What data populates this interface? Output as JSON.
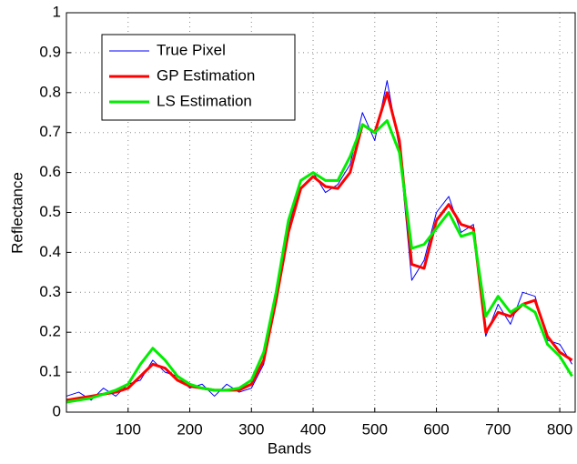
{
  "chart_data": {
    "type": "line",
    "xlabel": "Bands",
    "ylabel": "Reflectance",
    "x": [
      0,
      20,
      40,
      60,
      80,
      100,
      120,
      140,
      160,
      180,
      200,
      220,
      240,
      260,
      280,
      300,
      320,
      340,
      360,
      380,
      400,
      420,
      440,
      460,
      480,
      500,
      520,
      540,
      560,
      580,
      600,
      620,
      640,
      660,
      680,
      700,
      720,
      740,
      760,
      780,
      800,
      820
    ],
    "series": [
      {
        "name": "True Pixel",
        "color": "#0000ff",
        "width": 1,
        "values": [
          0.04,
          0.05,
          0.03,
          0.06,
          0.04,
          0.07,
          0.08,
          0.13,
          0.1,
          0.09,
          0.06,
          0.07,
          0.04,
          0.07,
          0.05,
          0.06,
          0.12,
          0.3,
          0.46,
          0.58,
          0.6,
          0.55,
          0.57,
          0.62,
          0.75,
          0.68,
          0.83,
          0.66,
          0.33,
          0.38,
          0.5,
          0.54,
          0.45,
          0.47,
          0.19,
          0.27,
          0.22,
          0.3,
          0.29,
          0.18,
          0.17,
          0.12
        ]
      },
      {
        "name": "GP Estimation",
        "color": "#ff0000",
        "width": 3,
        "values": [
          0.03,
          0.035,
          0.04,
          0.045,
          0.05,
          0.06,
          0.09,
          0.12,
          0.11,
          0.08,
          0.065,
          0.06,
          0.055,
          0.055,
          0.055,
          0.07,
          0.13,
          0.28,
          0.45,
          0.56,
          0.59,
          0.565,
          0.56,
          0.6,
          0.72,
          0.7,
          0.8,
          0.68,
          0.37,
          0.36,
          0.48,
          0.52,
          0.47,
          0.46,
          0.2,
          0.25,
          0.24,
          0.27,
          0.28,
          0.19,
          0.15,
          0.13
        ]
      },
      {
        "name": "LS Estimation",
        "color": "#00ee00",
        "width": 3,
        "values": [
          0.025,
          0.03,
          0.035,
          0.045,
          0.055,
          0.07,
          0.12,
          0.16,
          0.13,
          0.09,
          0.07,
          0.06,
          0.055,
          0.055,
          0.06,
          0.08,
          0.15,
          0.3,
          0.48,
          0.58,
          0.6,
          0.58,
          0.58,
          0.64,
          0.72,
          0.7,
          0.73,
          0.65,
          0.41,
          0.42,
          0.46,
          0.5,
          0.44,
          0.45,
          0.24,
          0.29,
          0.25,
          0.27,
          0.25,
          0.17,
          0.14,
          0.09
        ]
      }
    ],
    "xlim": [
      0,
      825
    ],
    "xticks": [
      100,
      200,
      300,
      400,
      500,
      600,
      700,
      800
    ],
    "ylim": [
      0,
      1
    ],
    "yticks": [
      0,
      0.1,
      0.2,
      0.3,
      0.4,
      0.5,
      0.6,
      0.7,
      0.8,
      0.9,
      1
    ],
    "grid": true,
    "legend": "upper-left"
  }
}
